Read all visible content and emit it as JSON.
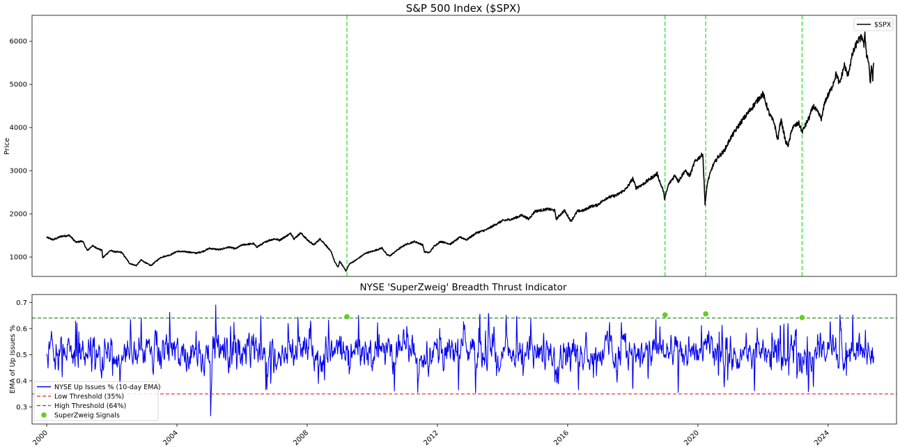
{
  "colors": {
    "price_line": "#000000",
    "indicator_line": "#0000ee",
    "low_threshold": "#d62728",
    "high_threshold": "#1a7a1a",
    "signal_marker": "#66cc22",
    "signal_vline": "#33dd33"
  },
  "chart_data": [
    {
      "type": "line",
      "title": "S&P 500 Index ($SPX)",
      "xlabel": "",
      "ylabel": "Price",
      "xlim": [
        1999.55,
        2026.1
      ],
      "ylim": [
        550,
        6600
      ],
      "yticks": [
        1000,
        2000,
        3000,
        4000,
        5000,
        6000
      ],
      "legend_position": "top-right",
      "grid": false,
      "series": [
        {
          "name": "$SPX",
          "points": [
            [
              2000.0,
              1455
            ],
            [
              2000.2,
              1400
            ],
            [
              2000.45,
              1480
            ],
            [
              2000.7,
              1500
            ],
            [
              2000.9,
              1340
            ],
            [
              2001.1,
              1370
            ],
            [
              2001.25,
              1150
            ],
            [
              2001.4,
              1260
            ],
            [
              2001.7,
              1150
            ],
            [
              2001.72,
              980
            ],
            [
              2001.95,
              1150
            ],
            [
              2002.1,
              1120
            ],
            [
              2002.3,
              1110
            ],
            [
              2002.55,
              850
            ],
            [
              2002.75,
              800
            ],
            [
              2002.9,
              930
            ],
            [
              2003.1,
              840
            ],
            [
              2003.2,
              800
            ],
            [
              2003.5,
              990
            ],
            [
              2003.8,
              1050
            ],
            [
              2004.0,
              1130
            ],
            [
              2004.3,
              1120
            ],
            [
              2004.6,
              1090
            ],
            [
              2004.8,
              1130
            ],
            [
              2005.0,
              1200
            ],
            [
              2005.3,
              1170
            ],
            [
              2005.6,
              1230
            ],
            [
              2005.8,
              1190
            ],
            [
              2006.0,
              1280
            ],
            [
              2006.35,
              1310
            ],
            [
              2006.45,
              1230
            ],
            [
              2006.8,
              1380
            ],
            [
              2007.0,
              1420
            ],
            [
              2007.15,
              1390
            ],
            [
              2007.5,
              1550
            ],
            [
              2007.6,
              1420
            ],
            [
              2007.8,
              1560
            ],
            [
              2008.0,
              1400
            ],
            [
              2008.2,
              1280
            ],
            [
              2008.4,
              1420
            ],
            [
              2008.6,
              1250
            ],
            [
              2008.75,
              1100
            ],
            [
              2008.85,
              880
            ],
            [
              2008.95,
              760
            ],
            [
              2009.0,
              900
            ],
            [
              2009.15,
              730
            ],
            [
              2009.19,
              676
            ],
            [
              2009.3,
              840
            ],
            [
              2009.5,
              930
            ],
            [
              2009.8,
              1090
            ],
            [
              2010.0,
              1130
            ],
            [
              2010.3,
              1210
            ],
            [
              2010.45,
              1050
            ],
            [
              2010.55,
              1030
            ],
            [
              2010.8,
              1180
            ],
            [
              2011.0,
              1280
            ],
            [
              2011.3,
              1360
            ],
            [
              2011.55,
              1280
            ],
            [
              2011.6,
              1120
            ],
            [
              2011.75,
              1100
            ],
            [
              2011.9,
              1250
            ],
            [
              2012.1,
              1360
            ],
            [
              2012.4,
              1300
            ],
            [
              2012.7,
              1460
            ],
            [
              2012.9,
              1400
            ],
            [
              2013.2,
              1560
            ],
            [
              2013.5,
              1630
            ],
            [
              2013.8,
              1760
            ],
            [
              2014.0,
              1840
            ],
            [
              2014.3,
              1880
            ],
            [
              2014.6,
              1970
            ],
            [
              2014.8,
              1880
            ],
            [
              2015.0,
              2060
            ],
            [
              2015.4,
              2110
            ],
            [
              2015.6,
              2080
            ],
            [
              2015.65,
              1880
            ],
            [
              2015.9,
              2080
            ],
            [
              2016.1,
              1830
            ],
            [
              2016.3,
              2060
            ],
            [
              2016.5,
              2080
            ],
            [
              2016.7,
              2170
            ],
            [
              2016.9,
              2200
            ],
            [
              2017.2,
              2370
            ],
            [
              2017.5,
              2430
            ],
            [
              2017.8,
              2580
            ],
            [
              2018.0,
              2820
            ],
            [
              2018.1,
              2600
            ],
            [
              2018.3,
              2680
            ],
            [
              2018.6,
              2850
            ],
            [
              2018.75,
              2930
            ],
            [
              2018.85,
              2700
            ],
            [
              2018.93,
              2550
            ],
            [
              2018.98,
              2350
            ],
            [
              2019.1,
              2680
            ],
            [
              2019.3,
              2900
            ],
            [
              2019.4,
              2750
            ],
            [
              2019.6,
              3000
            ],
            [
              2019.75,
              2880
            ],
            [
              2019.9,
              3200
            ],
            [
              2020.1,
              3350
            ],
            [
              2020.15,
              3390
            ],
            [
              2020.18,
              2900
            ],
            [
              2020.22,
              2237
            ],
            [
              2020.3,
              2750
            ],
            [
              2020.45,
              3100
            ],
            [
              2020.6,
              3300
            ],
            [
              2020.8,
              3450
            ],
            [
              2021.0,
              3750
            ],
            [
              2021.3,
              4100
            ],
            [
              2021.6,
              4400
            ],
            [
              2021.9,
              4700
            ],
            [
              2022.0,
              4780
            ],
            [
              2022.2,
              4300
            ],
            [
              2022.35,
              4100
            ],
            [
              2022.45,
              3700
            ],
            [
              2022.55,
              4200
            ],
            [
              2022.7,
              3650
            ],
            [
              2022.78,
              3590
            ],
            [
              2022.9,
              4000
            ],
            [
              2023.1,
              4100
            ],
            [
              2023.2,
              3900
            ],
            [
              2023.4,
              4200
            ],
            [
              2023.55,
              4500
            ],
            [
              2023.8,
              4200
            ],
            [
              2023.9,
              4600
            ],
            [
              2024.1,
              4900
            ],
            [
              2024.25,
              5250
            ],
            [
              2024.35,
              5000
            ],
            [
              2024.5,
              5450
            ],
            [
              2024.6,
              5200
            ],
            [
              2024.75,
              5700
            ],
            [
              2024.9,
              6000
            ],
            [
              2025.05,
              6100
            ],
            [
              2025.1,
              5900
            ],
            [
              2025.13,
              6140
            ],
            [
              2025.18,
              5700
            ],
            [
              2025.25,
              5500
            ],
            [
              2025.3,
              4980
            ],
            [
              2025.33,
              5450
            ],
            [
              2025.37,
              5150
            ],
            [
              2025.4,
              5500
            ]
          ]
        }
      ],
      "signal_dates": [
        2009.22,
        2018.99,
        2020.24,
        2023.2
      ]
    },
    {
      "type": "line",
      "title": "NYSE 'SuperZweig' Breadth Thrust Indicator",
      "xlabel": "",
      "ylabel": "EMA of Up Issues %",
      "xlim": [
        1999.55,
        2026.1
      ],
      "ylim": [
        0.235,
        0.73
      ],
      "yticks": [
        0.3,
        0.4,
        0.5,
        0.6,
        0.7
      ],
      "xticks": [
        "2000",
        "2004",
        "2008",
        "2012",
        "2016",
        "2020",
        "2024"
      ],
      "legend_position": "lower-left",
      "grid": false,
      "series": [
        {
          "name": "NYSE Up Issues % (10-day EMA)",
          "x_range": [
            2000.0,
            2025.4
          ],
          "center": 0.51,
          "min": 0.25,
          "max": 0.71
        },
        {
          "name": "Low Threshold (35%)",
          "value": 0.35
        },
        {
          "name": "High Threshold (64%)",
          "value": 0.64
        },
        {
          "name": "SuperZweig Signals",
          "points": [
            [
              2009.22,
              0.645
            ],
            [
              2018.99,
              0.652
            ],
            [
              2020.24,
              0.656
            ],
            [
              2023.2,
              0.642
            ]
          ]
        }
      ]
    }
  ]
}
